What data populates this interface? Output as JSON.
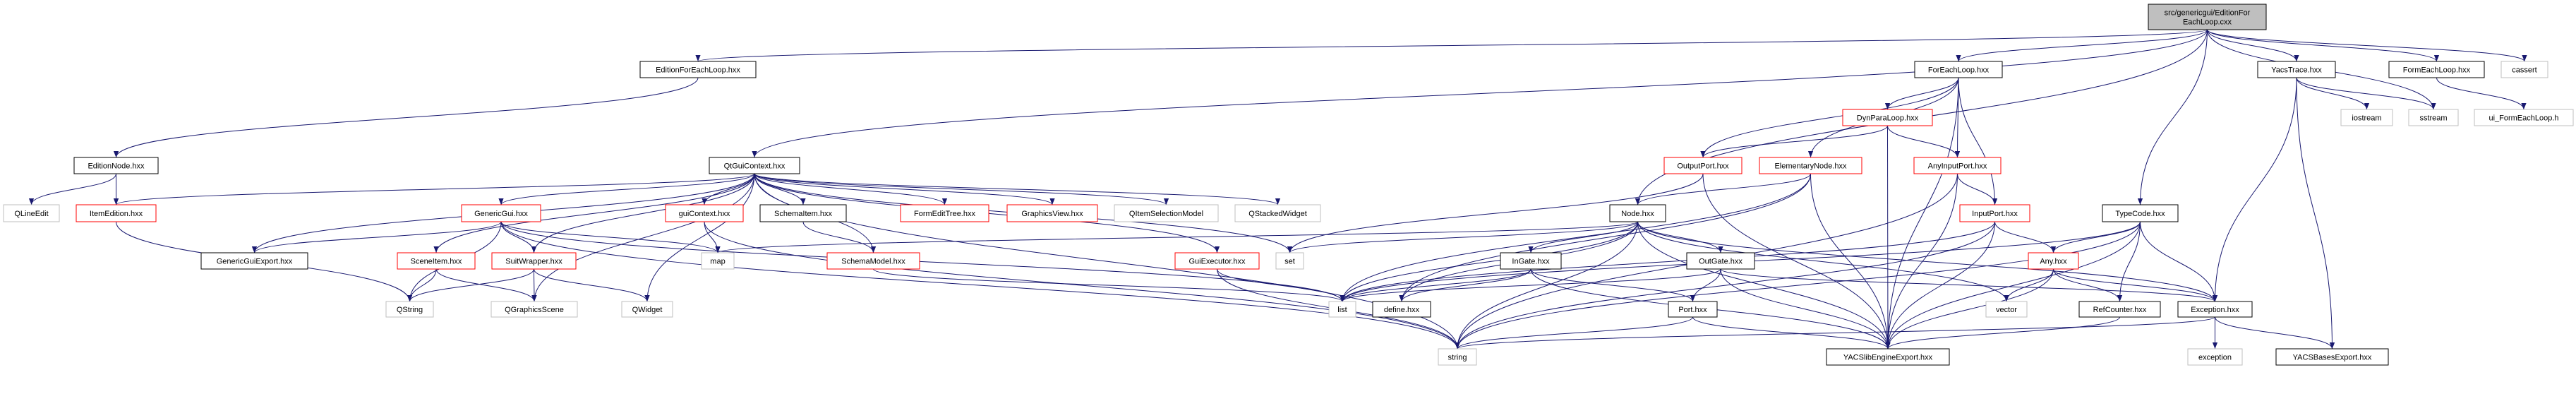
{
  "graph": {
    "edge_color": "#191970",
    "nodes": [
      {
        "id": "root",
        "label": [
          "src/genericgui/EditionFor",
          "EachLoop.cxx"
        ],
        "kind": "root"
      },
      {
        "id": "EditionForEachLoop",
        "label": [
          "EditionForEachLoop.hxx"
        ],
        "kind": "normal"
      },
      {
        "id": "EditionNode",
        "label": [
          "EditionNode.hxx"
        ],
        "kind": "normal"
      },
      {
        "id": "QLineEdit",
        "label": [
          "QLineEdit"
        ],
        "kind": "external"
      },
      {
        "id": "ItemEdition",
        "label": [
          "ItemEdition.hxx"
        ],
        "kind": "truncated"
      },
      {
        "id": "QtGuiContext",
        "label": [
          "QtGuiContext.hxx"
        ],
        "kind": "normal"
      },
      {
        "id": "GenericGui",
        "label": [
          "GenericGui.hxx"
        ],
        "kind": "truncated"
      },
      {
        "id": "guiContext",
        "label": [
          "guiContext.hxx"
        ],
        "kind": "truncated"
      },
      {
        "id": "SchemaItem",
        "label": [
          "SchemaItem.hxx"
        ],
        "kind": "normal"
      },
      {
        "id": "FormEditTree",
        "label": [
          "FormEditTree.hxx"
        ],
        "kind": "truncated"
      },
      {
        "id": "GraphicsView",
        "label": [
          "GraphicsView.hxx"
        ],
        "kind": "truncated"
      },
      {
        "id": "QItemSelectionModel",
        "label": [
          "QItemSelectionModel"
        ],
        "kind": "external"
      },
      {
        "id": "QStackedWidget",
        "label": [
          "QStackedWidget"
        ],
        "kind": "external"
      },
      {
        "id": "GenericGuiExport",
        "label": [
          "GenericGuiExport.hxx"
        ],
        "kind": "normal"
      },
      {
        "id": "SceneItem",
        "label": [
          "SceneItem.hxx"
        ],
        "kind": "truncated"
      },
      {
        "id": "SuitWrapper",
        "label": [
          "SuitWrapper.hxx"
        ],
        "kind": "truncated"
      },
      {
        "id": "map",
        "label": [
          "map"
        ],
        "kind": "external"
      },
      {
        "id": "SchemaModel",
        "label": [
          "SchemaModel.hxx"
        ],
        "kind": "truncated"
      },
      {
        "id": "GuiExecutor",
        "label": [
          "GuiExecutor.hxx"
        ],
        "kind": "truncated"
      },
      {
        "id": "set",
        "label": [
          "set"
        ],
        "kind": "external"
      },
      {
        "id": "QString",
        "label": [
          "QString"
        ],
        "kind": "external"
      },
      {
        "id": "QGraphicsScene",
        "label": [
          "QGraphicsScene"
        ],
        "kind": "external"
      },
      {
        "id": "QWidget",
        "label": [
          "QWidget"
        ],
        "kind": "external"
      },
      {
        "id": "list",
        "label": [
          "list"
        ],
        "kind": "external"
      },
      {
        "id": "define",
        "label": [
          "define.hxx"
        ],
        "kind": "normal"
      },
      {
        "id": "string",
        "label": [
          "string"
        ],
        "kind": "external"
      },
      {
        "id": "ForEachLoop",
        "label": [
          "ForEachLoop.hxx"
        ],
        "kind": "normal"
      },
      {
        "id": "DynParaLoop",
        "label": [
          "DynParaLoop.hxx"
        ],
        "kind": "truncated"
      },
      {
        "id": "OutputPort",
        "label": [
          "OutputPort.hxx"
        ],
        "kind": "truncated"
      },
      {
        "id": "ElementaryNode",
        "label": [
          "ElementaryNode.hxx"
        ],
        "kind": "truncated"
      },
      {
        "id": "AnyInputPort",
        "label": [
          "AnyInputPort.hxx"
        ],
        "kind": "truncated"
      },
      {
        "id": "Node",
        "label": [
          "Node.hxx"
        ],
        "kind": "normal"
      },
      {
        "id": "InputPort",
        "label": [
          "InputPort.hxx"
        ],
        "kind": "truncated"
      },
      {
        "id": "InGate",
        "label": [
          "InGate.hxx"
        ],
        "kind": "normal"
      },
      {
        "id": "OutGate",
        "label": [
          "OutGate.hxx"
        ],
        "kind": "normal"
      },
      {
        "id": "Port",
        "label": [
          "Port.hxx"
        ],
        "kind": "normal"
      },
      {
        "id": "YACSlibEngineExport",
        "label": [
          "YACSlibEngineExport.hxx"
        ],
        "kind": "normal"
      },
      {
        "id": "TypeCode",
        "label": [
          "TypeCode.hxx"
        ],
        "kind": "normal"
      },
      {
        "id": "Any",
        "label": [
          "Any.hxx"
        ],
        "kind": "truncated"
      },
      {
        "id": "vector",
        "label": [
          "vector"
        ],
        "kind": "external"
      },
      {
        "id": "RefCounter",
        "label": [
          "RefCounter.hxx"
        ],
        "kind": "normal"
      },
      {
        "id": "Exception",
        "label": [
          "Exception.hxx"
        ],
        "kind": "normal"
      },
      {
        "id": "exception",
        "label": [
          "exception"
        ],
        "kind": "external"
      },
      {
        "id": "YACSBasesExport",
        "label": [
          "YACSBasesExport.hxx"
        ],
        "kind": "normal"
      },
      {
        "id": "YacsTrace",
        "label": [
          "YacsTrace.hxx"
        ],
        "kind": "normal"
      },
      {
        "id": "iostream",
        "label": [
          "iostream"
        ],
        "kind": "external"
      },
      {
        "id": "sstream",
        "label": [
          "sstream"
        ],
        "kind": "external"
      },
      {
        "id": "FormEachLoop",
        "label": [
          "FormEachLoop.hxx"
        ],
        "kind": "normal"
      },
      {
        "id": "ui_FormEachLoop",
        "label": [
          "ui_FormEachLoop.h"
        ],
        "kind": "external"
      },
      {
        "id": "cassert",
        "label": [
          "cassert"
        ],
        "kind": "external"
      }
    ],
    "edges": [
      [
        "root",
        "EditionForEachLoop"
      ],
      [
        "root",
        "QtGuiContext"
      ],
      [
        "root",
        "ForEachLoop"
      ],
      [
        "root",
        "Node"
      ],
      [
        "root",
        "TypeCode"
      ],
      [
        "root",
        "YacsTrace"
      ],
      [
        "root",
        "FormEachLoop"
      ],
      [
        "root",
        "cassert"
      ],
      [
        "root",
        "sstream"
      ],
      [
        "EditionForEachLoop",
        "EditionNode"
      ],
      [
        "EditionNode",
        "QLineEdit"
      ],
      [
        "EditionNode",
        "ItemEdition"
      ],
      [
        "ItemEdition",
        "QString"
      ],
      [
        "QtGuiContext",
        "ItemEdition"
      ],
      [
        "QtGuiContext",
        "GenericGuiExport"
      ],
      [
        "QtGuiContext",
        "GenericGui"
      ],
      [
        "QtGuiContext",
        "SceneItem"
      ],
      [
        "QtGuiContext",
        "SuitWrapper"
      ],
      [
        "QtGuiContext",
        "QGraphicsScene"
      ],
      [
        "QtGuiContext",
        "QWidget"
      ],
      [
        "QtGuiContext",
        "guiContext"
      ],
      [
        "QtGuiContext",
        "SchemaItem"
      ],
      [
        "QtGuiContext",
        "SchemaModel"
      ],
      [
        "QtGuiContext",
        "FormEditTree"
      ],
      [
        "QtGuiContext",
        "GraphicsView"
      ],
      [
        "QtGuiContext",
        "QItemSelectionModel"
      ],
      [
        "QtGuiContext",
        "QStackedWidget"
      ],
      [
        "QtGuiContext",
        "GuiExecutor"
      ],
      [
        "QtGuiContext",
        "set"
      ],
      [
        "QtGuiContext",
        "string"
      ],
      [
        "GenericGui",
        "GenericGuiExport"
      ],
      [
        "GenericGui",
        "SuitWrapper"
      ],
      [
        "GenericGui",
        "QString"
      ],
      [
        "GenericGui",
        "map"
      ],
      [
        "GenericGui",
        "list"
      ],
      [
        "GenericGui",
        "string"
      ],
      [
        "SceneItem",
        "QString"
      ],
      [
        "SceneItem",
        "QGraphicsScene"
      ],
      [
        "SuitWrapper",
        "QString"
      ],
      [
        "SuitWrapper",
        "QGraphicsScene"
      ],
      [
        "SuitWrapper",
        "QWidget"
      ],
      [
        "guiContext",
        "map"
      ],
      [
        "guiContext",
        "string"
      ],
      [
        "SchemaItem",
        "SchemaModel"
      ],
      [
        "SchemaModel",
        "list"
      ],
      [
        "GuiExecutor",
        "list"
      ],
      [
        "GuiExecutor",
        "string"
      ],
      [
        "ForEachLoop",
        "DynParaLoop"
      ],
      [
        "ForEachLoop",
        "OutputPort"
      ],
      [
        "ForEachLoop",
        "ElementaryNode"
      ],
      [
        "ForEachLoop",
        "AnyInputPort"
      ],
      [
        "ForEachLoop",
        "InputPort"
      ],
      [
        "ForEachLoop",
        "YACSlibEngineExport"
      ],
      [
        "DynParaLoop",
        "OutputPort"
      ],
      [
        "DynParaLoop",
        "AnyInputPort"
      ],
      [
        "DynParaLoop",
        "YACSlibEngineExport"
      ],
      [
        "OutputPort",
        "set"
      ],
      [
        "OutputPort",
        "YACSlibEngineExport"
      ],
      [
        "ElementaryNode",
        "Node"
      ],
      [
        "ElementaryNode",
        "define"
      ],
      [
        "ElementaryNode",
        "list"
      ],
      [
        "ElementaryNode",
        "YACSlibEngineExport"
      ],
      [
        "AnyInputPort",
        "InputPort"
      ],
      [
        "AnyInputPort",
        "YACSlibEngineExport"
      ],
      [
        "AnyInputPort",
        "string"
      ],
      [
        "Node",
        "InGate"
      ],
      [
        "Node",
        "OutGate"
      ],
      [
        "Node",
        "define"
      ],
      [
        "Node",
        "list"
      ],
      [
        "Node",
        "set"
      ],
      [
        "Node",
        "map"
      ],
      [
        "Node",
        "string"
      ],
      [
        "Node",
        "YACSlibEngineExport"
      ],
      [
        "Node",
        "vector"
      ],
      [
        "Node",
        "Exception"
      ],
      [
        "InGate",
        "list"
      ],
      [
        "InGate",
        "define"
      ],
      [
        "InGate",
        "Port"
      ],
      [
        "InGate",
        "YACSlibEngineExport"
      ],
      [
        "OutGate",
        "Port"
      ],
      [
        "OutGate",
        "list"
      ],
      [
        "OutGate",
        "YACSlibEngineExport"
      ],
      [
        "OutGate",
        "Exception"
      ],
      [
        "Port",
        "string"
      ],
      [
        "Port",
        "YACSlibEngineExport"
      ],
      [
        "InputPort",
        "Any"
      ],
      [
        "InputPort",
        "string"
      ],
      [
        "InputPort",
        "YACSlibEngineExport"
      ],
      [
        "InputPort",
        "list"
      ],
      [
        "TypeCode",
        "Any"
      ],
      [
        "TypeCode",
        "RefCounter"
      ],
      [
        "TypeCode",
        "Exception"
      ],
      [
        "TypeCode",
        "YACSlibEngineExport"
      ],
      [
        "TypeCode",
        "list"
      ],
      [
        "TypeCode",
        "string"
      ],
      [
        "Any",
        "vector"
      ],
      [
        "Any",
        "RefCounter"
      ],
      [
        "Any",
        "Exception"
      ],
      [
        "Any",
        "YACSlibEngineExport"
      ],
      [
        "RefCounter",
        "YACSlibEngineExport"
      ],
      [
        "Exception",
        "exception"
      ],
      [
        "Exception",
        "YACSBasesExport"
      ],
      [
        "Exception",
        "string"
      ],
      [
        "YacsTrace",
        "iostream"
      ],
      [
        "YacsTrace",
        "sstream"
      ],
      [
        "YacsTrace",
        "Exception"
      ],
      [
        "YacsTrace",
        "YACSBasesExport"
      ],
      [
        "FormEachLoop",
        "ui_FormEachLoop"
      ]
    ],
    "styles": {
      "root": {
        "fill": "#bfbfbf",
        "stroke": "#000000"
      },
      "normal": {
        "fill": "#ffffff",
        "stroke": "#000000"
      },
      "truncated": {
        "fill": "#ffffff",
        "stroke": "#ff0000"
      },
      "external": {
        "fill": "#ffffff",
        "stroke": "#bfbfbf"
      }
    }
  }
}
